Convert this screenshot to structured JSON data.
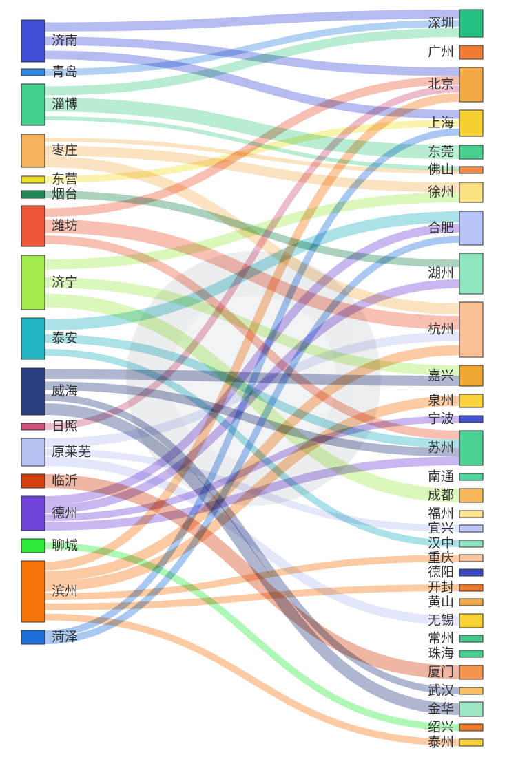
{
  "chart_data": {
    "type": "sankey",
    "sources": [
      {
        "name": "济南",
        "color": "#3f4fd6"
      },
      {
        "name": "青岛",
        "color": "#2f87e0"
      },
      {
        "name": "淄博",
        "color": "#45cf8c"
      },
      {
        "name": "枣庄",
        "color": "#f5b25a"
      },
      {
        "name": "东营",
        "color": "#eee02b"
      },
      {
        "name": "烟台",
        "color": "#1f8a55"
      },
      {
        "name": "潍坊",
        "color": "#ec5637"
      },
      {
        "name": "济宁",
        "color": "#a3ea4c"
      },
      {
        "name": "泰安",
        "color": "#22b3c2"
      },
      {
        "name": "威海",
        "color": "#2c3f82"
      },
      {
        "name": "日照",
        "color": "#d04f7a"
      },
      {
        "name": "原莱芜",
        "color": "#b9c1f3"
      },
      {
        "name": "临沂",
        "color": "#d4400d"
      },
      {
        "name": "德州",
        "color": "#7044d8"
      },
      {
        "name": "聊城",
        "color": "#2ce93a"
      },
      {
        "name": "滨州",
        "color": "#f7740c"
      },
      {
        "name": "菏泽",
        "color": "#1e6fdc"
      }
    ],
    "targets": [
      {
        "name": "深圳",
        "color": "#22bf80"
      },
      {
        "name": "广州",
        "color": "#f07b33"
      },
      {
        "name": "北京",
        "color": "#f2a843"
      },
      {
        "name": "上海",
        "color": "#f6cf33"
      },
      {
        "name": "东莞",
        "color": "#48cf8e"
      },
      {
        "name": "佛山",
        "color": "#ef8a48"
      },
      {
        "name": "徐州",
        "color": "#fbe082"
      },
      {
        "name": "合肥",
        "color": "#b8c4f7"
      },
      {
        "name": "湖州",
        "color": "#8fe6be"
      },
      {
        "name": "杭州",
        "color": "#f9c195"
      },
      {
        "name": "嘉兴",
        "color": "#efa734"
      },
      {
        "name": "泉州",
        "color": "#f7d23a"
      },
      {
        "name": "宁波",
        "color": "#4352cf"
      },
      {
        "name": "苏州",
        "color": "#48d192"
      },
      {
        "name": "南通",
        "color": "#4ad49a"
      },
      {
        "name": "成都",
        "color": "#f7b659"
      },
      {
        "name": "福州",
        "color": "#fbe38d"
      },
      {
        "name": "宜兴",
        "color": "#bcc5f5"
      },
      {
        "name": "汉中",
        "color": "#91e6c1"
      },
      {
        "name": "重庆",
        "color": "#f8c4a0"
      },
      {
        "name": "德阳",
        "color": "#3b49c4"
      },
      {
        "name": "开封",
        "color": "#ec7a2e"
      },
      {
        "name": "黄山",
        "color": "#eda84a"
      },
      {
        "name": "无锡",
        "color": "#f6d232"
      },
      {
        "name": "常州",
        "color": "#47c98b"
      },
      {
        "name": "珠海",
        "color": "#48cf8f"
      },
      {
        "name": "厦门",
        "color": "#f4944d"
      },
      {
        "name": "武汉",
        "color": "#f8c060"
      },
      {
        "name": "金华",
        "color": "#9fe6c4"
      },
      {
        "name": "绍兴",
        "color": "#ee7b2c"
      },
      {
        "name": "泰州",
        "color": "#f6ce3f"
      }
    ],
    "links": [
      [
        "济南",
        "深圳"
      ],
      [
        "济南",
        "北京"
      ],
      [
        "济南",
        "上海"
      ],
      [
        "青岛",
        "深圳"
      ],
      [
        "淄博",
        "深圳"
      ],
      [
        "淄博",
        "东莞"
      ],
      [
        "淄博",
        "佛山"
      ],
      [
        "枣庄",
        "徐州"
      ],
      [
        "枣庄",
        "杭州"
      ],
      [
        "枣庄",
        "佛山"
      ],
      [
        "东营",
        "上海"
      ],
      [
        "烟台",
        "湖州"
      ],
      [
        "潍坊",
        "北京"
      ],
      [
        "潍坊",
        "苏州"
      ],
      [
        "潍坊",
        "杭州"
      ],
      [
        "济宁",
        "嘉兴"
      ],
      [
        "济宁",
        "成都"
      ],
      [
        "济宁",
        "徐州"
      ],
      [
        "泰安",
        "合肥"
      ],
      [
        "泰安",
        "汉中"
      ],
      [
        "泰安",
        "苏州"
      ],
      [
        "威海",
        "苏州"
      ],
      [
        "威海",
        "嘉兴"
      ],
      [
        "威海",
        "金华"
      ],
      [
        "威海",
        "武汉"
      ],
      [
        "日照",
        "北京"
      ],
      [
        "原莱芜",
        "杭州"
      ],
      [
        "原莱芜",
        "无锡"
      ],
      [
        "原莱芜",
        "宜兴"
      ],
      [
        "临沂",
        "厦门"
      ],
      [
        "德州",
        "合肥"
      ],
      [
        "德州",
        "湖州"
      ],
      [
        "德州",
        "苏州"
      ],
      [
        "德州",
        "宁波"
      ],
      [
        "聊城",
        "绍兴"
      ],
      [
        "滨州",
        "北京"
      ],
      [
        "滨州",
        "杭州"
      ],
      [
        "滨州",
        "泉州"
      ],
      [
        "滨州",
        "泰州"
      ],
      [
        "滨州",
        "重庆"
      ],
      [
        "滨州",
        "开封"
      ],
      [
        "菏泽",
        "上海"
      ],
      [
        "菏泽",
        "合肥"
      ]
    ]
  }
}
